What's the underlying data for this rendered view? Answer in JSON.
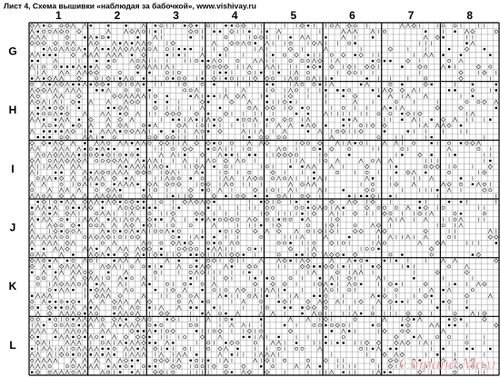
{
  "header": {
    "title": "Лист 4, Схема вышивки «наблюдая за бабочкой», www.vishivay.ru"
  },
  "columns": [
    "1",
    "2",
    "3",
    "4",
    "5",
    "6",
    "7",
    "8"
  ],
  "rows": [
    "G",
    "H",
    "I",
    "J",
    "K",
    "L"
  ],
  "watermark": "Страна Мам"
}
